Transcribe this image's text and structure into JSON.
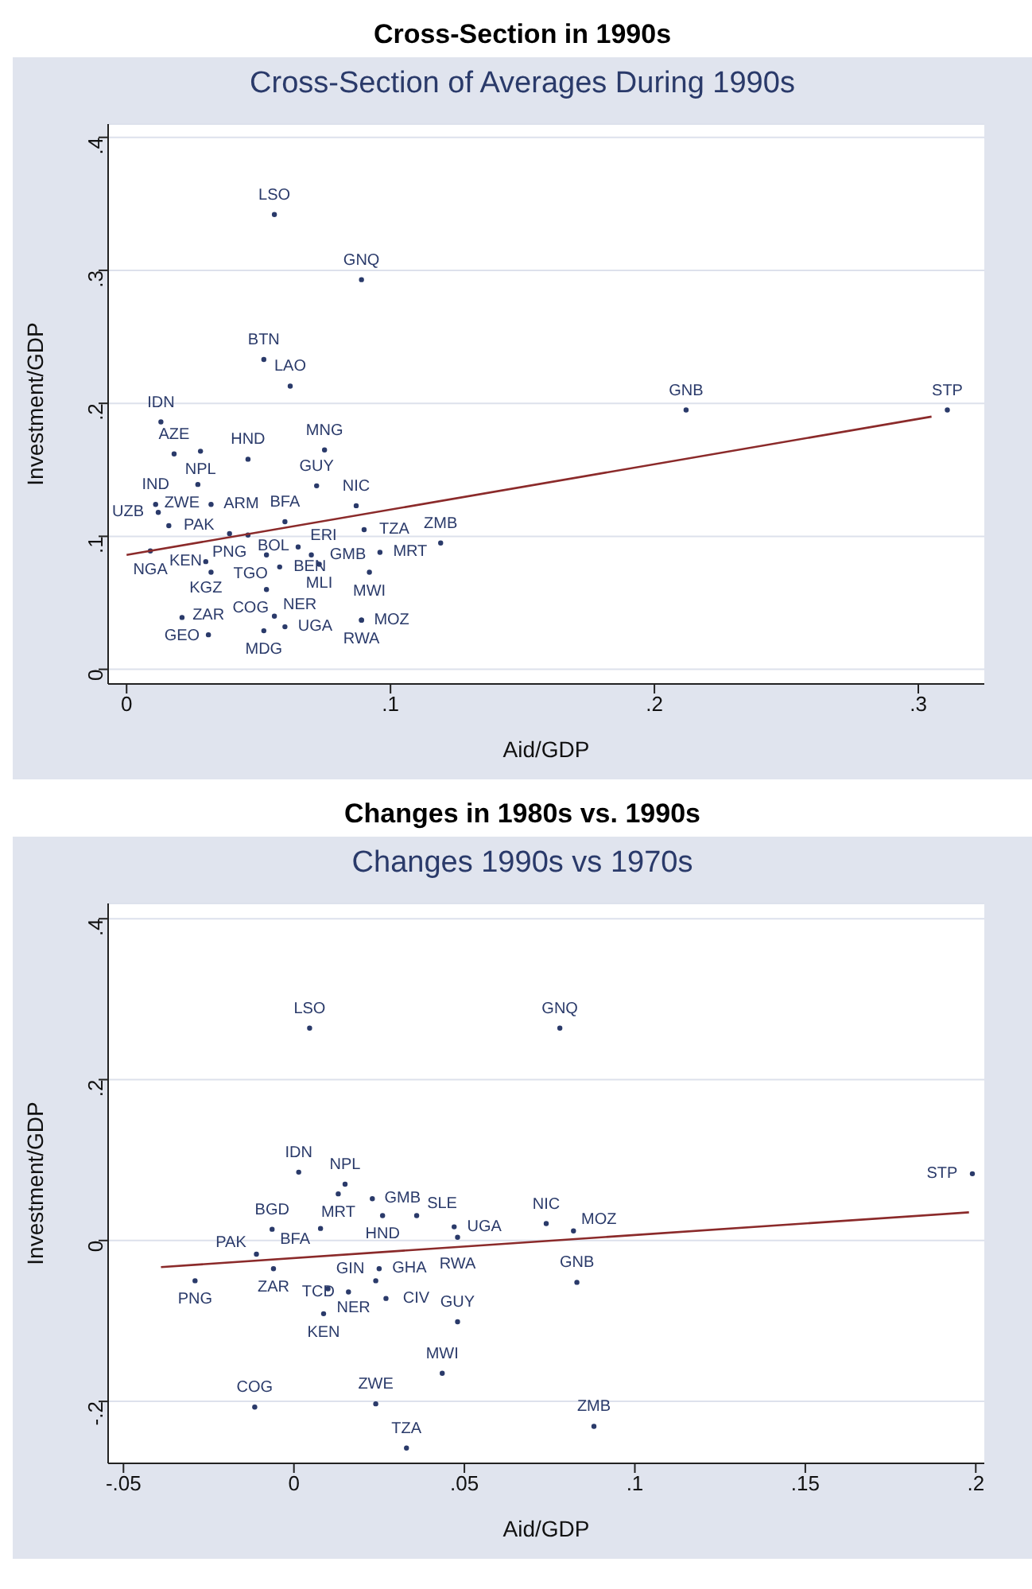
{
  "chart_data": [
    {
      "type": "scatter",
      "title": "Cross-Section in 1990s",
      "subtitle": "Cross-Section of Averages During 1990s",
      "xlabel": "Aid/GDP",
      "ylabel": "Investment/GDP",
      "xlim": [
        -0.007,
        0.325
      ],
      "ylim": [
        -0.011,
        0.41
      ],
      "xticks": [
        {
          "value": 0,
          "label": "0"
        },
        {
          "value": 0.1,
          "label": ".1"
        },
        {
          "value": 0.2,
          "label": ".2"
        },
        {
          "value": 0.3,
          "label": ".3"
        }
      ],
      "yticks": [
        {
          "value": 0,
          "label": "0"
        },
        {
          "value": 0.1,
          "label": ".1"
        },
        {
          "value": 0.2,
          "label": ".2"
        },
        {
          "value": 0.3,
          "label": ".3"
        },
        {
          "value": 0.4,
          "label": ".4"
        }
      ],
      "grid": "y",
      "legend": false,
      "series": [
        {
          "color": "#2a3a6a",
          "marker": "circle",
          "x": [
            0.056,
            0.089,
            0.052,
            0.062,
            0.013,
            0.212,
            0.311,
            0.018,
            0.028,
            0.046,
            0.075,
            0.027,
            0.072,
            0.032,
            0.087,
            0.011,
            0.012,
            0.06,
            0.09,
            0.119,
            0.016,
            0.039,
            0.046,
            0.009,
            0.096,
            0.053,
            0.065,
            0.07,
            0.03,
            0.073,
            0.092,
            0.021,
            0.031,
            0.052,
            0.06,
            0.056,
            0.089,
            0.089,
            0.053,
            0.058,
            0.032
          ],
          "values": [
            0.342,
            0.293,
            0.233,
            0.213,
            0.186,
            0.195,
            0.195,
            0.162,
            0.164,
            0.158,
            0.165,
            0.139,
            0.138,
            0.124,
            0.123,
            0.124,
            0.118,
            0.111,
            0.105,
            0.095,
            0.108,
            0.102,
            0.101,
            0.089,
            0.088,
            0.086,
            0.092,
            0.086,
            0.081,
            0.079,
            0.073,
            0.039,
            0.026,
            0.029,
            0.032,
            0.04,
            0.037,
            0.037,
            0.06,
            0.077,
            0.073
          ],
          "value_labels": [
            "LSO",
            "GNQ",
            "BTN",
            "LAO",
            "IDN",
            "GNB",
            "STP",
            "AZE",
            "NPL",
            "HND",
            "MNG",
            "ZWE",
            "GUY",
            "ARM",
            "NIC",
            "IND",
            "UZB",
            "BFA",
            "TZA",
            "ZMB",
            "PAK",
            "PNG",
            "BOL",
            "NGA",
            "MRT",
            "TGO",
            "ERI",
            "GMB",
            "KGZ",
            "MLI",
            "MWI",
            "GEO",
            "ZAR",
            "MDG",
            "UGA",
            "NER",
            "RWA",
            "MOZ",
            "COG",
            "BEN",
            "KEN"
          ]
        },
        {
          "type": "line",
          "color": "#8b2a2a",
          "x": [
            0,
            0.305
          ],
          "values": [
            0.086,
            0.19
          ]
        }
      ]
    },
    {
      "type": "scatter",
      "title": "Changes in 1980s vs. 1990s",
      "subtitle": "Changes 1990s vs 1970s",
      "xlabel": "Aid/GDP",
      "ylabel": "Investment/GDP",
      "xlim": [
        -0.0545,
        0.2025
      ],
      "ylim": [
        -0.277,
        0.419
      ],
      "xticks": [
        {
          "value": -0.05,
          "label": "-.05"
        },
        {
          "value": 0,
          "label": "0"
        },
        {
          "value": 0.05,
          "label": ".05"
        },
        {
          "value": 0.1,
          "label": ".1"
        },
        {
          "value": 0.15,
          "label": ".15"
        },
        {
          "value": 0.2,
          "label": ".2"
        }
      ],
      "yticks": [
        {
          "value": -0.2,
          "label": "-.2"
        },
        {
          "value": 0,
          "label": "0"
        },
        {
          "value": 0.2,
          "label": ".2"
        },
        {
          "value": 0.4,
          "label": ".4"
        }
      ],
      "grid": "y",
      "legend": false,
      "series": [
        {
          "color": "#2a3a6a",
          "marker": "circle",
          "x": [
            0.0046,
            0.078,
            0.199,
            0.0014,
            0.015,
            0.013,
            0.023,
            0.026,
            0.036,
            0.047,
            0.048,
            0.074,
            0.082,
            -0.0064,
            0.0078,
            -0.011,
            -0.006,
            0.025,
            0.024,
            0.01,
            0.016,
            0.027,
            0.0087,
            0.048,
            0.083,
            -0.029,
            0.0435,
            -0.0115,
            0.024,
            0.088,
            0.033
          ],
          "values": [
            0.264,
            0.264,
            0.083,
            0.085,
            0.07,
            0.058,
            0.052,
            0.031,
            0.031,
            0.017,
            0.004,
            0.021,
            0.012,
            0.014,
            0.015,
            -0.017,
            -0.035,
            -0.035,
            -0.05,
            -0.06,
            -0.064,
            -0.072,
            -0.091,
            -0.101,
            -0.052,
            -0.05,
            -0.165,
            -0.207,
            -0.203,
            -0.231,
            -0.258
          ],
          "value_labels": [
            "LSO",
            "GNQ",
            "STP",
            "IDN",
            "NPL",
            "MRT",
            "GMB",
            "HND",
            "SLE",
            "UGA",
            "RWA",
            "NIC",
            "MOZ",
            "BGD",
            "BFA",
            "PAK",
            "ZAR",
            "GHA",
            "GIN",
            "NER",
            "TCD",
            "CIV",
            "KEN",
            "GUY",
            "GNB",
            "PNG",
            "MWI",
            "COG",
            "ZWE",
            "ZMB",
            "TZA"
          ]
        },
        {
          "type": "line",
          "color": "#8b2a2a",
          "x": [
            -0.039,
            0.198
          ],
          "values": [
            -0.033,
            0.035
          ]
        }
      ]
    }
  ]
}
